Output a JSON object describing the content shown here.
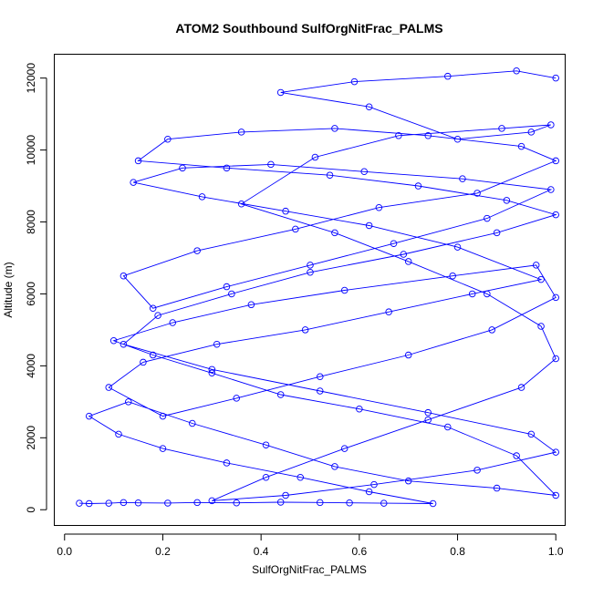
{
  "chart_data": {
    "type": "line",
    "title": "ATOM2 Southbound SulfOrgNitFrac_PALMS",
    "xlabel": "SulfOrgNitFrac_PALMS",
    "ylabel": "Altitude (m)",
    "xlim": [
      -0.02,
      1.02
    ],
    "ylim": [
      -450,
      12650
    ],
    "xticks": [
      0.0,
      0.2,
      0.4,
      0.6,
      0.8,
      1.0
    ],
    "xtick_labels": [
      "0.0",
      "0.2",
      "0.4",
      "0.6",
      "0.8",
      "1.0"
    ],
    "yticks": [
      0,
      2000,
      4000,
      6000,
      8000,
      10000,
      12000
    ],
    "ytick_labels": [
      "0",
      "2000",
      "4000",
      "6000",
      "8000",
      "10000",
      "12000"
    ],
    "grid": false,
    "marker": "open-circle",
    "color": "#0000ff",
    "series": [
      {
        "x": [
          0.03,
          0.05,
          0.09,
          0.12,
          0.15,
          0.21,
          0.27,
          0.35,
          0.44,
          0.52,
          0.58,
          0.65,
          0.75,
          0.62,
          0.48,
          0.33,
          0.2,
          0.11,
          0.05,
          0.13,
          0.26,
          0.41,
          0.55,
          0.7,
          0.88,
          1.0,
          0.92,
          0.78,
          0.6,
          0.44,
          0.3,
          0.18,
          0.1,
          0.22,
          0.38,
          0.57,
          0.79,
          0.96,
          1.0,
          0.87,
          0.7,
          0.52,
          0.35,
          0.2,
          0.09,
          0.16,
          0.31,
          0.49,
          0.66,
          0.83,
          0.97,
          0.8,
          0.62,
          0.45,
          0.28,
          0.14,
          0.24,
          0.42,
          0.61,
          0.81,
          0.99,
          0.86,
          0.67,
          0.5,
          0.33,
          0.18,
          0.12,
          0.27,
          0.47,
          0.64,
          0.84,
          1.0,
          0.93,
          0.74,
          0.55,
          0.36,
          0.21,
          0.15,
          0.33,
          0.54,
          0.72,
          0.9,
          1.0,
          0.88,
          0.69,
          0.5,
          0.34,
          0.19,
          0.12,
          0.3,
          0.52,
          0.74,
          0.95,
          1.0,
          0.84,
          0.63,
          0.45,
          0.3,
          0.41,
          0.57,
          0.74,
          0.93,
          1.0,
          0.97,
          0.86,
          0.7,
          0.55,
          0.36,
          0.51,
          0.68,
          0.89,
          0.99,
          0.95,
          0.8,
          0.62,
          0.44,
          0.59,
          0.78,
          0.92,
          1.0
        ],
        "y": [
          180,
          170,
          180,
          200,
          190,
          185,
          200,
          190,
          210,
          200,
          190,
          180,
          170,
          500,
          900,
          1300,
          1700,
          2100,
          2600,
          3000,
          2400,
          1800,
          1200,
          800,
          600,
          400,
          1500,
          2300,
          2800,
          3200,
          3800,
          4300,
          4700,
          5200,
          5700,
          6100,
          6500,
          6800,
          5900,
          5000,
          4300,
          3700,
          3100,
          2600,
          3400,
          4100,
          4600,
          5000,
          5500,
          6000,
          6400,
          7300,
          7900,
          8300,
          8700,
          9100,
          9500,
          9600,
          9400,
          9200,
          8900,
          8100,
          7400,
          6800,
          6200,
          5600,
          6500,
          7200,
          7800,
          8400,
          8800,
          9700,
          10100,
          10400,
          10600,
          10500,
          10300,
          9700,
          9500,
          9300,
          9000,
          8600,
          8200,
          7700,
          7100,
          6600,
          6000,
          5400,
          4600,
          3900,
          3300,
          2700,
          2100,
          1600,
          1100,
          700,
          400,
          250,
          900,
          1700,
          2500,
          3400,
          4200,
          5100,
          6000,
          6900,
          7700,
          8500,
          9800,
          10400,
          10600,
          10700,
          10500,
          10300,
          11200,
          11600,
          11900,
          12050,
          12200,
          12000
        ]
      }
    ]
  }
}
